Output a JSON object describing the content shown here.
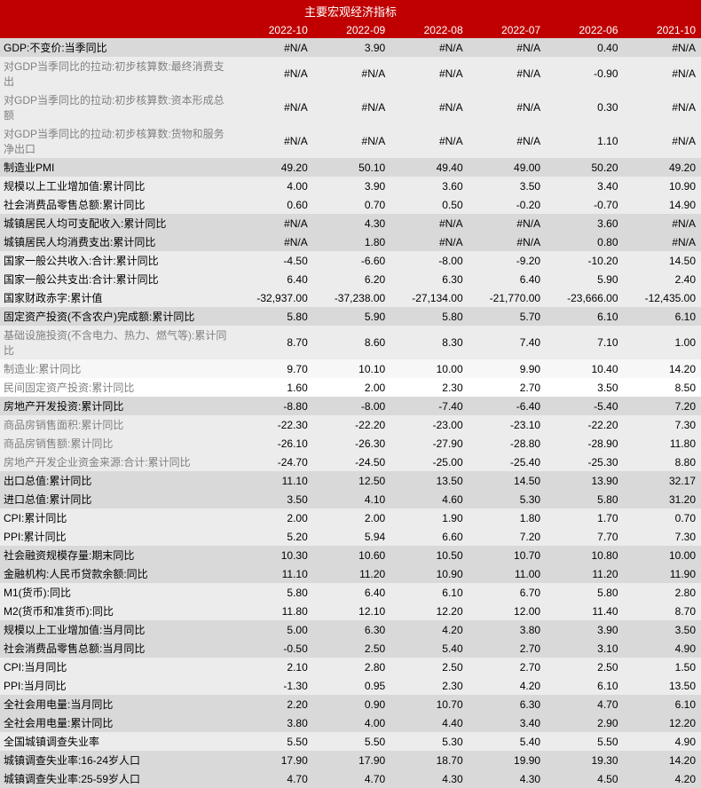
{
  "title": "主要宏观经济指标",
  "colors": {
    "header_bg": "#c00000",
    "header_fg": "#ffffff",
    "row_dark": "#d9d9d9",
    "row_med": "#ececec",
    "row_light": "#f7f7f7",
    "row_white": "#ffffff",
    "label_dark": "#000000",
    "label_light": "#808080"
  },
  "columns": [
    "2022-10",
    "2022-09",
    "2022-08",
    "2022-07",
    "2022-06",
    "2021-10"
  ],
  "rows": [
    {
      "label": "GDP:不变价:当季同比",
      "vals": [
        "#N/A",
        "3.90",
        "#N/A",
        "#N/A",
        "0.40",
        "#N/A"
      ],
      "bg": "dark",
      "lbl": "dark"
    },
    {
      "label": "对GDP当季同比的拉动:初步核算数:最终消费支出",
      "vals": [
        "#N/A",
        "#N/A",
        "#N/A",
        "#N/A",
        "-0.90",
        "#N/A"
      ],
      "bg": "med",
      "lbl": "light"
    },
    {
      "label": "对GDP当季同比的拉动:初步核算数:资本形成总额",
      "vals": [
        "#N/A",
        "#N/A",
        "#N/A",
        "#N/A",
        "0.30",
        "#N/A"
      ],
      "bg": "med",
      "lbl": "light"
    },
    {
      "label": "对GDP当季同比的拉动:初步核算数:货物和服务净出口",
      "vals": [
        "#N/A",
        "#N/A",
        "#N/A",
        "#N/A",
        "1.10",
        "#N/A"
      ],
      "bg": "med",
      "lbl": "light"
    },
    {
      "label": "制造业PMI",
      "vals": [
        "49.20",
        "50.10",
        "49.40",
        "49.00",
        "50.20",
        "49.20"
      ],
      "bg": "dark",
      "lbl": "dark"
    },
    {
      "label": "规模以上工业增加值:累计同比",
      "vals": [
        "4.00",
        "3.90",
        "3.60",
        "3.50",
        "3.40",
        "10.90"
      ],
      "bg": "med",
      "lbl": "dark"
    },
    {
      "label": "社会消费品零售总额:累计同比",
      "vals": [
        "0.60",
        "0.70",
        "0.50",
        "-0.20",
        "-0.70",
        "14.90"
      ],
      "bg": "med",
      "lbl": "dark"
    },
    {
      "label": "城镇居民人均可支配收入:累计同比",
      "vals": [
        "#N/A",
        "4.30",
        "#N/A",
        "#N/A",
        "3.60",
        "#N/A"
      ],
      "bg": "dark",
      "lbl": "dark"
    },
    {
      "label": "城镇居民人均消费支出:累计同比",
      "vals": [
        "#N/A",
        "1.80",
        "#N/A",
        "#N/A",
        "0.80",
        "#N/A"
      ],
      "bg": "dark",
      "lbl": "dark"
    },
    {
      "label": "国家一般公共收入:合计:累计同比",
      "vals": [
        "-4.50",
        "-6.60",
        "-8.00",
        "-9.20",
        "-10.20",
        "14.50"
      ],
      "bg": "med",
      "lbl": "dark"
    },
    {
      "label": "国家一般公共支出:合计:累计同比",
      "vals": [
        "6.40",
        "6.20",
        "6.30",
        "6.40",
        "5.90",
        "2.40"
      ],
      "bg": "med",
      "lbl": "dark"
    },
    {
      "label": "国家财政赤字:累计值",
      "vals": [
        "-32,937.00",
        "-37,238.00",
        "-27,134.00",
        "-21,770.00",
        "-23,666.00",
        "-12,435.00"
      ],
      "bg": "med",
      "lbl": "dark"
    },
    {
      "label": "固定资产投资(不含农户)完成额:累计同比",
      "vals": [
        "5.80",
        "5.90",
        "5.80",
        "5.70",
        "6.10",
        "6.10"
      ],
      "bg": "dark",
      "lbl": "dark"
    },
    {
      "label": "基础设施投资(不含电力、热力、燃气等):累计同比",
      "vals": [
        "8.70",
        "8.60",
        "8.30",
        "7.40",
        "7.10",
        "1.00"
      ],
      "bg": "med",
      "lbl": "light"
    },
    {
      "label": "制造业:累计同比",
      "vals": [
        "9.70",
        "10.10",
        "10.00",
        "9.90",
        "10.40",
        "14.20"
      ],
      "bg": "light",
      "lbl": "light"
    },
    {
      "label": "民间固定资产投资:累计同比",
      "vals": [
        "1.60",
        "2.00",
        "2.30",
        "2.70",
        "3.50",
        "8.50"
      ],
      "bg": "white",
      "lbl": "light"
    },
    {
      "label": "房地产开发投资:累计同比",
      "vals": [
        "-8.80",
        "-8.00",
        "-7.40",
        "-6.40",
        "-5.40",
        "7.20"
      ],
      "bg": "dark",
      "lbl": "dark"
    },
    {
      "label": "商品房销售面积:累计同比",
      "vals": [
        "-22.30",
        "-22.20",
        "-23.00",
        "-23.10",
        "-22.20",
        "7.30"
      ],
      "bg": "med",
      "lbl": "light"
    },
    {
      "label": "商品房销售额:累计同比",
      "vals": [
        "-26.10",
        "-26.30",
        "-27.90",
        "-28.80",
        "-28.90",
        "11.80"
      ],
      "bg": "med",
      "lbl": "light"
    },
    {
      "label": "房地产开发企业资金来源:合计:累计同比",
      "vals": [
        "-24.70",
        "-24.50",
        "-25.00",
        "-25.40",
        "-25.30",
        "8.80"
      ],
      "bg": "med",
      "lbl": "light"
    },
    {
      "label": "出口总值:累计同比",
      "vals": [
        "11.10",
        "12.50",
        "13.50",
        "14.50",
        "13.90",
        "32.17"
      ],
      "bg": "dark",
      "lbl": "dark"
    },
    {
      "label": "进口总值:累计同比",
      "vals": [
        "3.50",
        "4.10",
        "4.60",
        "5.30",
        "5.80",
        "31.20"
      ],
      "bg": "dark",
      "lbl": "dark"
    },
    {
      "label": "CPI:累计同比",
      "vals": [
        "2.00",
        "2.00",
        "1.90",
        "1.80",
        "1.70",
        "0.70"
      ],
      "bg": "med",
      "lbl": "dark"
    },
    {
      "label": "PPI:累计同比",
      "vals": [
        "5.20",
        "5.94",
        "6.60",
        "7.20",
        "7.70",
        "7.30"
      ],
      "bg": "med",
      "lbl": "dark"
    },
    {
      "label": "社会融资规模存量:期末同比",
      "vals": [
        "10.30",
        "10.60",
        "10.50",
        "10.70",
        "10.80",
        "10.00"
      ],
      "bg": "dark",
      "lbl": "dark"
    },
    {
      "label": "金融机构:人民币贷款余额:同比",
      "vals": [
        "11.10",
        "11.20",
        "10.90",
        "11.00",
        "11.20",
        "11.90"
      ],
      "bg": "dark",
      "lbl": "dark"
    },
    {
      "label": "M1(货币):同比",
      "vals": [
        "5.80",
        "6.40",
        "6.10",
        "6.70",
        "5.80",
        "2.80"
      ],
      "bg": "med",
      "lbl": "dark"
    },
    {
      "label": "M2(货币和准货币):同比",
      "vals": [
        "11.80",
        "12.10",
        "12.20",
        "12.00",
        "11.40",
        "8.70"
      ],
      "bg": "med",
      "lbl": "dark"
    },
    {
      "label": "规模以上工业增加值:当月同比",
      "vals": [
        "5.00",
        "6.30",
        "4.20",
        "3.80",
        "3.90",
        "3.50"
      ],
      "bg": "dark",
      "lbl": "dark"
    },
    {
      "label": "社会消费品零售总额:当月同比",
      "vals": [
        "-0.50",
        "2.50",
        "5.40",
        "2.70",
        "3.10",
        "4.90"
      ],
      "bg": "dark",
      "lbl": "dark"
    },
    {
      "label": "CPI:当月同比",
      "vals": [
        "2.10",
        "2.80",
        "2.50",
        "2.70",
        "2.50",
        "1.50"
      ],
      "bg": "med",
      "lbl": "dark"
    },
    {
      "label": "PPI:当月同比",
      "vals": [
        "-1.30",
        "0.95",
        "2.30",
        "4.20",
        "6.10",
        "13.50"
      ],
      "bg": "med",
      "lbl": "dark"
    },
    {
      "label": "全社会用电量:当月同比",
      "vals": [
        "2.20",
        "0.90",
        "10.70",
        "6.30",
        "4.70",
        "6.10"
      ],
      "bg": "dark",
      "lbl": "dark"
    },
    {
      "label": "全社会用电量:累计同比",
      "vals": [
        "3.80",
        "4.00",
        "4.40",
        "3.40",
        "2.90",
        "12.20"
      ],
      "bg": "dark",
      "lbl": "dark"
    },
    {
      "label": "全国城镇调查失业率",
      "vals": [
        "5.50",
        "5.50",
        "5.30",
        "5.40",
        "5.50",
        "4.90"
      ],
      "bg": "med",
      "lbl": "dark"
    },
    {
      "label": "城镇调查失业率:16-24岁人口",
      "vals": [
        "17.90",
        "17.90",
        "18.70",
        "19.90",
        "19.30",
        "14.20"
      ],
      "bg": "dark",
      "lbl": "dark"
    },
    {
      "label": "城镇调查失业率:25-59岁人口",
      "vals": [
        "4.70",
        "4.70",
        "4.30",
        "4.30",
        "4.50",
        "4.20"
      ],
      "bg": "dark",
      "lbl": "dark"
    }
  ]
}
